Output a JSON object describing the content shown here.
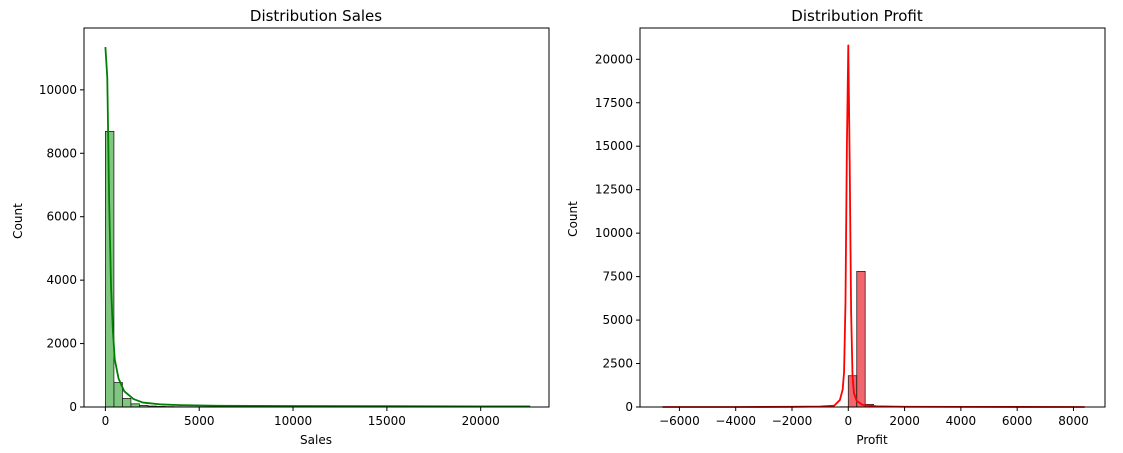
{
  "chart_data": [
    {
      "type": "bar",
      "title": "Distribution Sales",
      "xlabel": "Sales",
      "ylabel": "Count",
      "xlim": [
        -1140,
        23640
      ],
      "ylim": [
        0,
        11950
      ],
      "xticks": [
        0,
        5000,
        10000,
        15000,
        20000
      ],
      "yticks": [
        0,
        2000,
        4000,
        6000,
        8000,
        10000
      ],
      "xtick_labels": [
        "0",
        "5000",
        "10000",
        "15000",
        "20000"
      ],
      "ytick_labels": [
        "0",
        "2000",
        "4000",
        "6000",
        "8000",
        "10000"
      ],
      "grid": false,
      "bar_color": "#2ca02c",
      "bar_opacity": 0.6,
      "kde_color": "#008000",
      "bins": {
        "start": 0.44,
        "width": 453,
        "counts": [
          8690,
          770,
          270,
          100,
          50,
          30,
          18,
          12,
          8,
          6,
          5,
          4,
          3,
          3,
          2,
          2,
          2,
          1,
          1,
          1,
          1,
          1,
          1,
          1,
          0,
          1,
          0,
          0,
          1,
          0,
          0,
          1,
          0,
          0,
          0,
          0,
          0,
          0,
          0,
          0,
          0,
          0,
          0,
          0,
          0,
          0,
          0,
          0,
          0,
          1
        ]
      },
      "kde": {
        "x": [
          0,
          100,
          200,
          300,
          400,
          500,
          700,
          1000,
          1500,
          2000,
          3000,
          4000,
          6000,
          10000,
          15000,
          20000,
          22640
        ],
        "y": [
          11350,
          10400,
          6500,
          3800,
          2400,
          1500,
          900,
          500,
          250,
          140,
          80,
          60,
          40,
          30,
          25,
          20,
          20
        ]
      }
    },
    {
      "type": "bar",
      "title": "Distribution Profit",
      "xlabel": "Profit",
      "ylabel": "Count",
      "xlim": [
        -7400,
        9120
      ],
      "ylim": [
        0,
        21800
      ],
      "xticks": [
        -6000,
        -4000,
        -2000,
        0,
        2000,
        4000,
        6000,
        8000
      ],
      "yticks": [
        0,
        2500,
        5000,
        7500,
        10000,
        12500,
        15000,
        17500,
        20000
      ],
      "xtick_labels": [
        "−6000",
        "−4000",
        "−2000",
        "0",
        "2000",
        "4000",
        "6000",
        "8000"
      ],
      "ytick_labels": [
        "0",
        "2500",
        "5000",
        "7500",
        "10000",
        "12500",
        "15000",
        "17500",
        "20000"
      ],
      "grid": false,
      "bar_color": "#e8000b",
      "bar_opacity": 0.6,
      "kde_color": "#ff0000",
      "bins": {
        "start": -6600,
        "width": 300,
        "counts": [
          1,
          0,
          0,
          0,
          0,
          0,
          0,
          0,
          0,
          0,
          0,
          0,
          1,
          0,
          0,
          0,
          1,
          1,
          2,
          3,
          5,
          12,
          1800,
          7800,
          150,
          25,
          10,
          6,
          4,
          3,
          2,
          2,
          1,
          1,
          1,
          1,
          1,
          1,
          0,
          0,
          0,
          0,
          0,
          0,
          0,
          0,
          0,
          0,
          0,
          1
        ]
      },
      "kde": {
        "x": [
          -6600,
          -4000,
          -2000,
          -1000,
          -500,
          -300,
          -200,
          -150,
          -100,
          -50,
          0,
          50,
          100,
          150,
          200,
          300,
          500,
          1000,
          2000,
          4000,
          8400
        ],
        "y": [
          0,
          0,
          10,
          30,
          80,
          400,
          1000,
          2000,
          6000,
          15000,
          20800,
          14000,
          5500,
          1800,
          800,
          350,
          120,
          40,
          15,
          5,
          0
        ]
      }
    }
  ]
}
